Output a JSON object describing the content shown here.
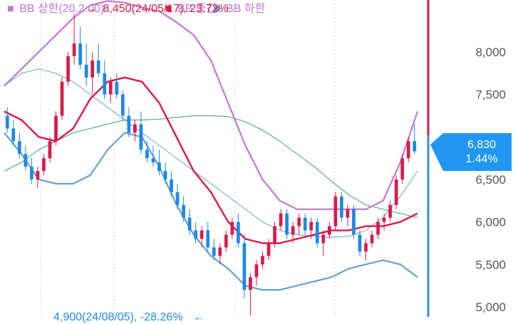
{
  "chart_data": {
    "type": "candlestick",
    "ylim": [
      4850,
      8650
    ],
    "y_ticks": [
      5000,
      5500,
      6000,
      6500,
      7000,
      7500,
      8000
    ],
    "y_tick_labels": [
      "5,000",
      "5,500",
      "6,000",
      "6,500",
      "7,000",
      "7,500",
      "8,000"
    ],
    "legend": [
      {
        "marker": "■",
        "label": "BB 상한(20,2.00)",
        "color": "#c277d0"
      },
      {
        "marker": "■",
        "label": "BB 중간",
        "color": "#d81b4a"
      },
      {
        "marker": "■",
        "label": "BB 하한",
        "color": "#6a9fd0"
      }
    ],
    "high_annotation": {
      "text": "8,450(24/05/17), 23.72%",
      "arrow": "→",
      "color": "#d81b4a",
      "value": 8450
    },
    "low_annotation": {
      "text": "4,900(24/08/05), -28.26%",
      "arrow": "←",
      "color": "#1e88e5",
      "value": 4900
    },
    "current_price": {
      "price": "6,830",
      "change": "1.44%",
      "value": 6830,
      "color": "#2196f3"
    },
    "colors": {
      "up": "#d81b4a",
      "down": "#1e88e5",
      "bb_upper": "#c277d0",
      "bb_mid": "#d81b4a",
      "bb_lower": "#6a9fd0",
      "ma_long": "#5aa8a0",
      "ma_long2": "#7fb4c8"
    },
    "candles": [
      [
        7250,
        7350,
        7050,
        7100
      ],
      [
        7100,
        7200,
        6900,
        6950
      ],
      [
        6950,
        7050,
        6750,
        6800
      ],
      [
        6800,
        6900,
        6600,
        6650
      ],
      [
        6650,
        6750,
        6450,
        6500
      ],
      [
        6500,
        6650,
        6400,
        6600
      ],
      [
        6600,
        6800,
        6550,
        6750
      ],
      [
        6750,
        7000,
        6700,
        6950
      ],
      [
        6950,
        7300,
        6900,
        7250
      ],
      [
        7250,
        7700,
        7200,
        7650
      ],
      [
        7650,
        8000,
        7600,
        7950
      ],
      [
        7950,
        8450,
        7850,
        8100
      ],
      [
        8100,
        8300,
        7800,
        7850
      ],
      [
        7850,
        8100,
        7600,
        7700
      ],
      [
        7700,
        8000,
        7500,
        7900
      ],
      [
        7900,
        8100,
        7700,
        7750
      ],
      [
        7750,
        7900,
        7450,
        7500
      ],
      [
        7500,
        7700,
        7400,
        7650
      ],
      [
        7650,
        7750,
        7450,
        7500
      ],
      [
        7500,
        7550,
        7200,
        7250
      ],
      [
        7250,
        7350,
        7000,
        7050
      ],
      [
        7050,
        7200,
        6950,
        7150
      ],
      [
        7150,
        7300,
        6800,
        6850
      ],
      [
        6850,
        6950,
        6700,
        6750
      ],
      [
        6750,
        6900,
        6650,
        6700
      ],
      [
        6700,
        6850,
        6550,
        6600
      ],
      [
        6600,
        6700,
        6450,
        6500
      ],
      [
        6500,
        6600,
        6300,
        6350
      ],
      [
        6350,
        6450,
        6150,
        6200
      ],
      [
        6200,
        6300,
        6000,
        6050
      ],
      [
        6050,
        6150,
        5850,
        5900
      ],
      [
        5900,
        6000,
        5750,
        5800
      ],
      [
        5800,
        5950,
        5700,
        5900
      ],
      [
        5900,
        6000,
        5650,
        5700
      ],
      [
        5700,
        5800,
        5550,
        5600
      ],
      [
        5600,
        5750,
        5500,
        5700
      ],
      [
        5700,
        5900,
        5650,
        5850
      ],
      [
        5850,
        6050,
        5800,
        6000
      ],
      [
        6000,
        6100,
        5700,
        5750
      ],
      [
        5750,
        5850,
        5100,
        5200
      ],
      [
        5200,
        5400,
        4900,
        5350
      ],
      [
        5350,
        5550,
        5250,
        5500
      ],
      [
        5500,
        5650,
        5450,
        5600
      ],
      [
        5600,
        5800,
        5550,
        5750
      ],
      [
        5750,
        6000,
        5700,
        5950
      ],
      [
        5950,
        6150,
        5900,
        6100
      ],
      [
        6100,
        6150,
        5800,
        5850
      ],
      [
        5850,
        6000,
        5750,
        5950
      ],
      [
        5950,
        6100,
        5850,
        6050
      ],
      [
        6050,
        6100,
        5850,
        5900
      ],
      [
        5900,
        6050,
        5800,
        6000
      ],
      [
        6000,
        6050,
        5700,
        5750
      ],
      [
        5750,
        5900,
        5600,
        5850
      ],
      [
        5850,
        6000,
        5800,
        5950
      ],
      [
        5950,
        6350,
        5900,
        6300
      ],
      [
        6300,
        6350,
        6000,
        6050
      ],
      [
        6050,
        6200,
        5950,
        6150
      ],
      [
        6150,
        6200,
        5800,
        5850
      ],
      [
        5850,
        5900,
        5600,
        5650
      ],
      [
        5650,
        5800,
        5550,
        5750
      ],
      [
        5750,
        5900,
        5700,
        5850
      ],
      [
        5850,
        6050,
        5800,
        6000
      ],
      [
        6000,
        6100,
        5900,
        6050
      ],
      [
        6050,
        6250,
        6000,
        6200
      ],
      [
        6200,
        6550,
        6150,
        6500
      ],
      [
        6500,
        6800,
        6450,
        6750
      ],
      [
        6750,
        7000,
        6700,
        6950
      ],
      [
        6950,
        7150,
        6800,
        6830
      ]
    ],
    "bb_upper": [
      7600,
      7800,
      8000,
      8200,
      8400,
      8550,
      8600,
      8580,
      8520,
      8480,
      8350,
      8200,
      7900,
      7400,
      6900,
      6500,
      6250,
      6150,
      6150,
      6150,
      6150,
      6150,
      6250,
      6700,
      7300
    ],
    "bb_mid": [
      7300,
      7200,
      7000,
      6950,
      7100,
      7450,
      7650,
      7700,
      7650,
      7400,
      7000,
      6600,
      6350,
      6000,
      5800,
      5750,
      5750,
      5800,
      5850,
      5900,
      5900,
      5950,
      5950,
      6000,
      6100
    ],
    "bb_lower": [
      7050,
      6800,
      6500,
      6450,
      6450,
      6550,
      6850,
      7050,
      7000,
      6650,
      6200,
      5850,
      5600,
      5450,
      5250,
      5200,
      5200,
      5250,
      5300,
      5350,
      5450,
      5500,
      5550,
      5500,
      5350
    ],
    "ma_long": [
      6600,
      6700,
      6850,
      6950,
      7050,
      7100,
      7150,
      7200,
      7200,
      7210,
      7230,
      7250,
      7250,
      7240,
      7180,
      7080,
      6950,
      6800,
      6650,
      6480,
      6320,
      6200,
      6150,
      6100,
      6050
    ],
    "ma_long2": [
      7600,
      7750,
      7800,
      7750,
      7650,
      7500,
      7350,
      7200,
      7050,
      6900,
      6750,
      6600,
      6450,
      6300,
      6150,
      6000,
      5900,
      5850,
      5830,
      5820,
      5830,
      5900,
      6050,
      6300,
      6600
    ]
  }
}
